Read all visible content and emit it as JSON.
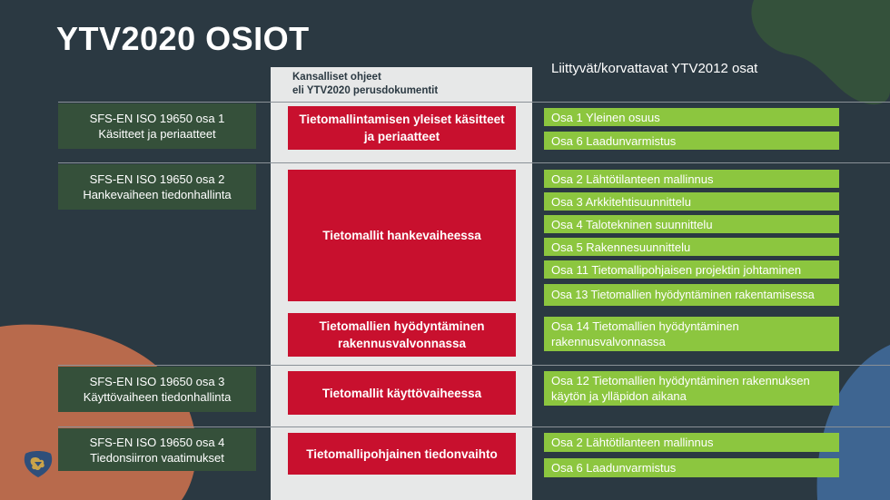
{
  "title": "YTV2020 OSIOT",
  "middle_header": {
    "line1": "Kansalliset ohjeet",
    "line2": "eli YTV2020 perusdokumentit"
  },
  "right_header": "Liittyvät/korvattavat YTV2012 osat",
  "standards": [
    {
      "line1": "SFS-EN ISO 19650 osa 1",
      "line2": "Käsitteet ja periaatteet"
    },
    {
      "line1": "SFS-EN ISO 19650 osa 2",
      "line2": "Hankevaiheen tiedonhallinta"
    },
    {
      "line1": "SFS-EN ISO 19650 osa 3",
      "line2": "Käyttövaiheen tiedonhallinta"
    },
    {
      "line1": "SFS-EN ISO 19650 osa 4",
      "line2": "Tiedonsiirron vaatimukset"
    }
  ],
  "documents": [
    "Tietomallintamisen yleiset käsitteet ja periaatteet",
    "Tietomallit hankevaiheessa",
    "Tietomallien hyödyntäminen rakennusvalvonnassa",
    "Tietomallit käyttövaiheessa",
    "Tietomallipohjainen tiedonvaihto"
  ],
  "ytv2012_parts": [
    "Osa 1 Yleinen osuus",
    "Osa 6 Laadunvarmistus",
    "Osa 2 Lähtötilanteen mallinnus",
    "Osa 3 Arkkitehtisuunnittelu",
    "Osa 4 Talotekninen suunnittelu",
    "Osa 5 Rakennesuunnittelu",
    "Osa 11 Tietomallipohjaisen projektin johtaminen",
    "Osa 13 Tietomallien hyödyntäminen rakentamisessa",
    "Osa 14 Tietomallien hyödyntäminen rakennusvalvonnassa",
    "Osa 12 Tietomallien hyödyntäminen rakennuksen käytön ja ylläpidon aikana",
    "Osa 2 Lähtötilanteen mallinnus",
    "Osa 6 Laadunvarmistus"
  ],
  "colors": {
    "background": "#2b3942",
    "standard_box": "#35503a",
    "document_box": "#c8102e",
    "part_box": "#8cc63f",
    "column_bg": "#e7e8e8",
    "blob_green": "#34513b",
    "blob_orange": "#b86a4c",
    "blob_blue": "#3e6591"
  },
  "icons": [
    "lion-logo-icon"
  ]
}
